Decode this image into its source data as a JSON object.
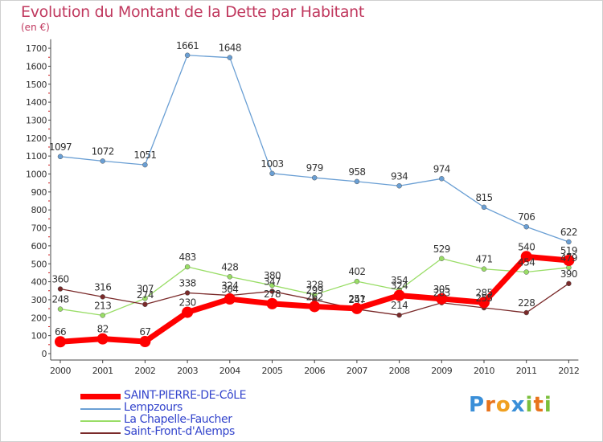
{
  "chart_data": {
    "type": "line",
    "title": "Evolution du Montant de la Dette par Habitant",
    "ylabel": "(en €)",
    "xlabel": "",
    "categories": [
      "2000",
      "2001",
      "2002",
      "2003",
      "2004",
      "2005",
      "2006",
      "2007",
      "2008",
      "2009",
      "2010",
      "2011",
      "2012"
    ],
    "ylim": [
      0,
      1750
    ],
    "yticks": [
      0,
      100,
      200,
      300,
      400,
      500,
      600,
      700,
      800,
      900,
      1000,
      1100,
      1200,
      1300,
      1400,
      1500,
      1600,
      1700
    ],
    "grid": false,
    "legend_position": "bottom-left",
    "series": [
      {
        "name": "SAINT-PIERRE-DE-CôLE",
        "color": "#ff0000",
        "values": [
          66,
          82,
          67,
          230,
          304,
          278,
          262,
          251,
          324,
          305,
          285,
          540,
          519
        ]
      },
      {
        "name": "Lempzours",
        "color": "#6a9fd4",
        "values": [
          1097,
          1072,
          1051,
          1661,
          1648,
          1003,
          979,
          958,
          934,
          974,
          815,
          706,
          622
        ]
      },
      {
        "name": "La Chapelle-Faucher",
        "color": "#99dd66",
        "values": [
          248,
          213,
          307,
          483,
          428,
          380,
          328,
          402,
          354,
          529,
          471,
          454,
          479
        ]
      },
      {
        "name": "Saint-Front-d'Alemps",
        "color": "#7a2a2a",
        "values": [
          360,
          316,
          274,
          338,
          324,
          347,
          299,
          247,
          214,
          283,
          255,
          228,
          390
        ]
      }
    ]
  },
  "logo": {
    "letters": [
      "P",
      "r",
      "o",
      "x",
      "i",
      "t",
      "i"
    ],
    "colors": [
      "#3a8fd8",
      "#e8731c",
      "#f0a020",
      "#3a8fd8",
      "#7bbf3c",
      "#e8731c",
      "#7bbf3c"
    ]
  }
}
